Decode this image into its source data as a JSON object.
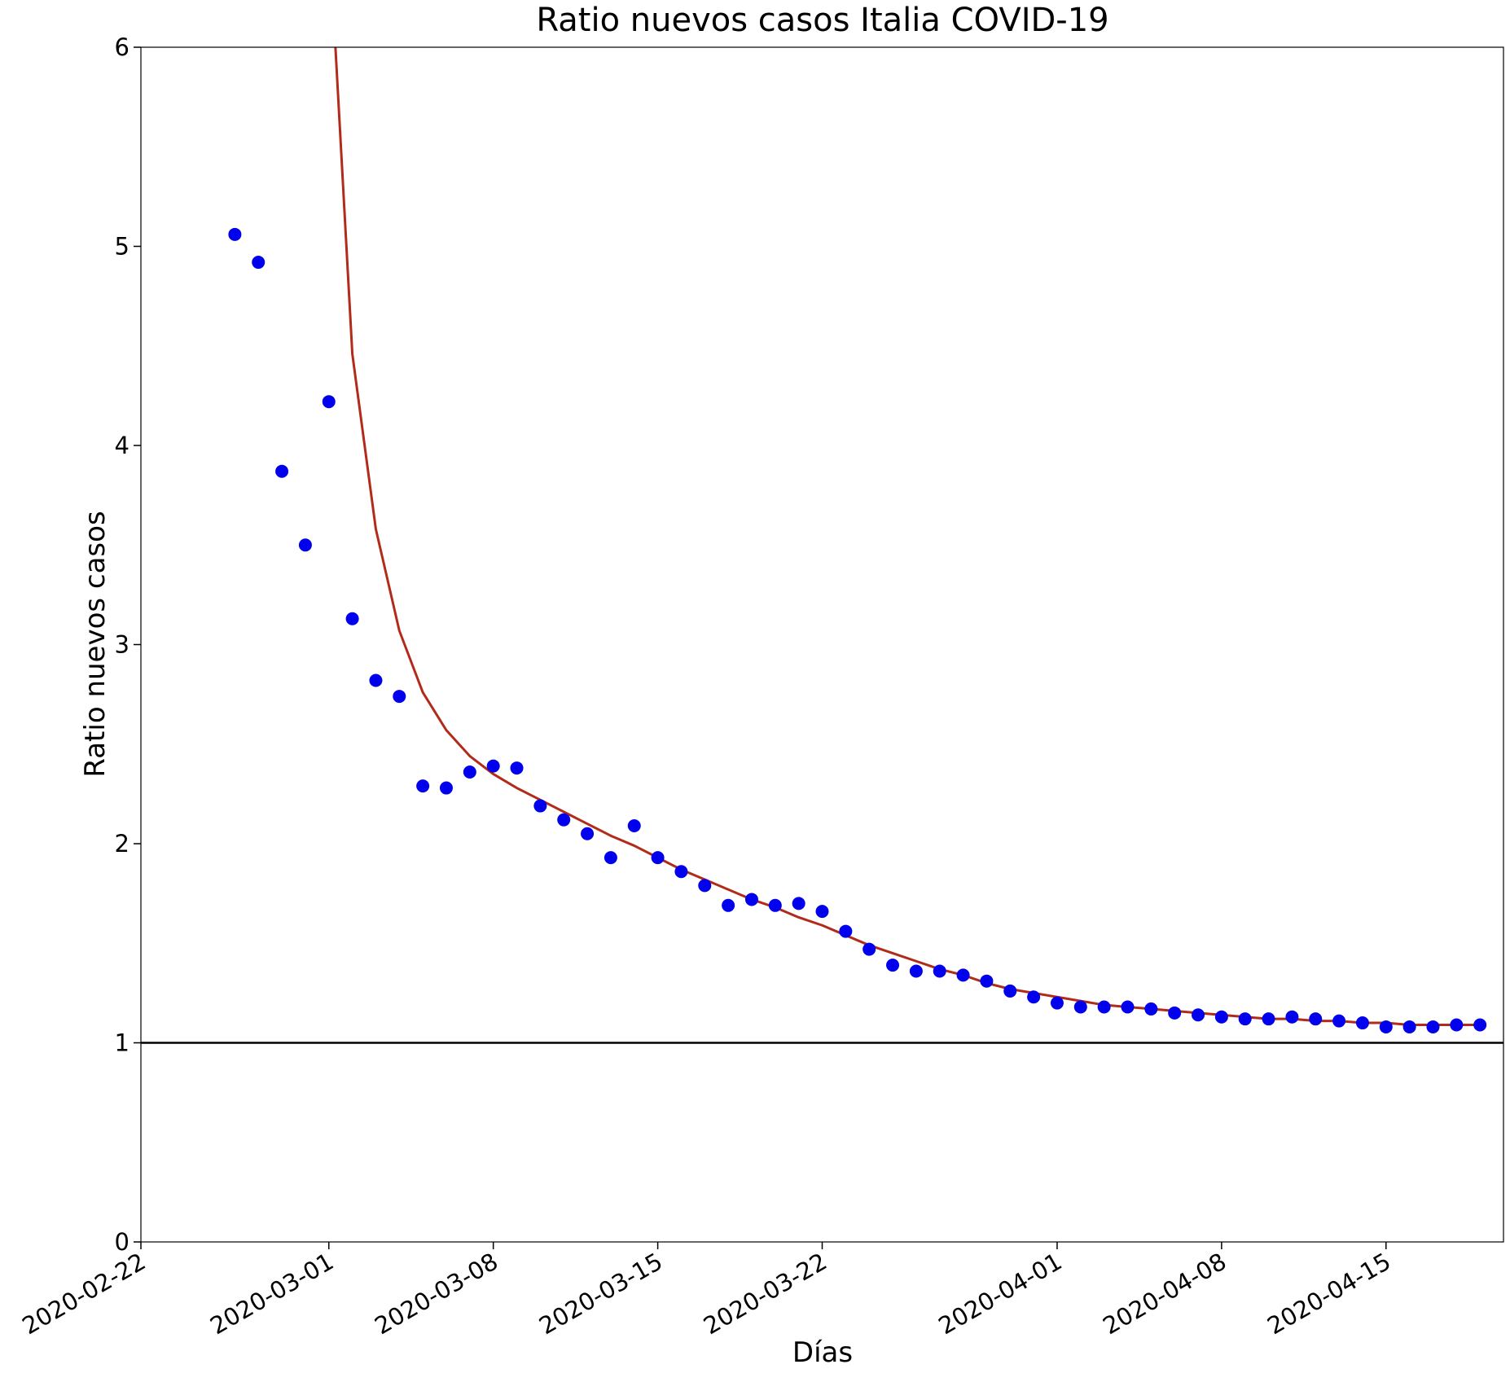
{
  "chart_data": {
    "type": "scatter",
    "title": "Ratio nuevos casos Italia COVID-19",
    "xlabel": "Días",
    "ylabel": "Ratio nuevos casos",
    "xlim": [
      "2020-02-22",
      "2020-04-20"
    ],
    "ylim": [
      0,
      6
    ],
    "x_ticks": [
      "2020-02-22",
      "2020-03-01",
      "2020-03-08",
      "2020-03-15",
      "2020-03-22",
      "2020-04-01",
      "2020-04-08",
      "2020-04-15"
    ],
    "y_ticks": [
      0,
      1,
      2,
      3,
      4,
      5,
      6
    ],
    "grid": false,
    "reference_line": {
      "y": 1,
      "color": "#000000"
    },
    "series": [
      {
        "kind": "points",
        "color": "#0000ee",
        "points": [
          [
            "2020-02-26",
            5.06
          ],
          [
            "2020-02-27",
            4.92
          ],
          [
            "2020-02-28",
            3.87
          ],
          [
            "2020-02-29",
            3.5
          ],
          [
            "2020-03-01",
            4.22
          ],
          [
            "2020-03-02",
            3.13
          ],
          [
            "2020-03-03",
            2.82
          ],
          [
            "2020-03-04",
            2.74
          ],
          [
            "2020-03-05",
            2.29
          ],
          [
            "2020-03-06",
            2.28
          ],
          [
            "2020-03-07",
            2.36
          ],
          [
            "2020-03-08",
            2.39
          ],
          [
            "2020-03-09",
            2.38
          ],
          [
            "2020-03-10",
            2.19
          ],
          [
            "2020-03-11",
            2.12
          ],
          [
            "2020-03-12",
            2.05
          ],
          [
            "2020-03-13",
            1.93
          ],
          [
            "2020-03-14",
            2.09
          ],
          [
            "2020-03-15",
            1.93
          ],
          [
            "2020-03-16",
            1.86
          ],
          [
            "2020-03-17",
            1.79
          ],
          [
            "2020-03-18",
            1.69
          ],
          [
            "2020-03-19",
            1.72
          ],
          [
            "2020-03-20",
            1.69
          ],
          [
            "2020-03-21",
            1.7
          ],
          [
            "2020-03-22",
            1.66
          ],
          [
            "2020-03-23",
            1.56
          ],
          [
            "2020-03-24",
            1.47
          ],
          [
            "2020-03-25",
            1.39
          ],
          [
            "2020-03-26",
            1.36
          ],
          [
            "2020-03-27",
            1.36
          ],
          [
            "2020-03-28",
            1.34
          ],
          [
            "2020-03-29",
            1.31
          ],
          [
            "2020-03-30",
            1.26
          ],
          [
            "2020-03-31",
            1.23
          ],
          [
            "2020-04-01",
            1.2
          ],
          [
            "2020-04-02",
            1.18
          ],
          [
            "2020-04-03",
            1.18
          ],
          [
            "2020-04-04",
            1.18
          ],
          [
            "2020-04-05",
            1.17
          ],
          [
            "2020-04-06",
            1.15
          ],
          [
            "2020-04-07",
            1.14
          ],
          [
            "2020-04-08",
            1.13
          ],
          [
            "2020-04-09",
            1.12
          ],
          [
            "2020-04-10",
            1.12
          ],
          [
            "2020-04-11",
            1.13
          ],
          [
            "2020-04-12",
            1.12
          ],
          [
            "2020-04-13",
            1.11
          ],
          [
            "2020-04-14",
            1.1
          ],
          [
            "2020-04-15",
            1.08
          ],
          [
            "2020-04-16",
            1.08
          ],
          [
            "2020-04-17",
            1.08
          ],
          [
            "2020-04-18",
            1.09
          ],
          [
            "2020-04-19",
            1.09
          ]
        ]
      },
      {
        "kind": "line",
        "color": "#b22b1a",
        "points": [
          [
            "2020-03-01",
            6.6
          ],
          [
            "2020-03-02",
            4.46
          ],
          [
            "2020-03-03",
            3.58
          ],
          [
            "2020-03-04",
            3.07
          ],
          [
            "2020-03-05",
            2.76
          ],
          [
            "2020-03-06",
            2.57
          ],
          [
            "2020-03-07",
            2.44
          ],
          [
            "2020-03-08",
            2.35
          ],
          [
            "2020-03-09",
            2.28
          ],
          [
            "2020-03-10",
            2.22
          ],
          [
            "2020-03-11",
            2.16
          ],
          [
            "2020-03-12",
            2.1
          ],
          [
            "2020-03-13",
            2.04
          ],
          [
            "2020-03-14",
            1.99
          ],
          [
            "2020-03-15",
            1.93
          ],
          [
            "2020-03-16",
            1.87
          ],
          [
            "2020-03-17",
            1.82
          ],
          [
            "2020-03-18",
            1.77
          ],
          [
            "2020-03-19",
            1.72
          ],
          [
            "2020-03-20",
            1.68
          ],
          [
            "2020-03-21",
            1.63
          ],
          [
            "2020-03-22",
            1.59
          ],
          [
            "2020-03-23",
            1.54
          ],
          [
            "2020-03-24",
            1.49
          ],
          [
            "2020-03-25",
            1.45
          ],
          [
            "2020-03-26",
            1.41
          ],
          [
            "2020-03-27",
            1.37
          ],
          [
            "2020-03-28",
            1.34
          ],
          [
            "2020-03-29",
            1.3
          ],
          [
            "2020-03-30",
            1.27
          ],
          [
            "2020-03-31",
            1.25
          ],
          [
            "2020-04-01",
            1.23
          ],
          [
            "2020-04-02",
            1.21
          ],
          [
            "2020-04-03",
            1.19
          ],
          [
            "2020-04-04",
            1.18
          ],
          [
            "2020-04-05",
            1.17
          ],
          [
            "2020-04-06",
            1.16
          ],
          [
            "2020-04-07",
            1.15
          ],
          [
            "2020-04-08",
            1.14
          ],
          [
            "2020-04-09",
            1.13
          ],
          [
            "2020-04-10",
            1.12
          ],
          [
            "2020-04-11",
            1.12
          ],
          [
            "2020-04-12",
            1.11
          ],
          [
            "2020-04-13",
            1.11
          ],
          [
            "2020-04-14",
            1.1
          ],
          [
            "2020-04-15",
            1.1
          ],
          [
            "2020-04-16",
            1.09
          ],
          [
            "2020-04-17",
            1.09
          ],
          [
            "2020-04-18",
            1.09
          ],
          [
            "2020-04-19",
            1.09
          ]
        ]
      }
    ]
  }
}
